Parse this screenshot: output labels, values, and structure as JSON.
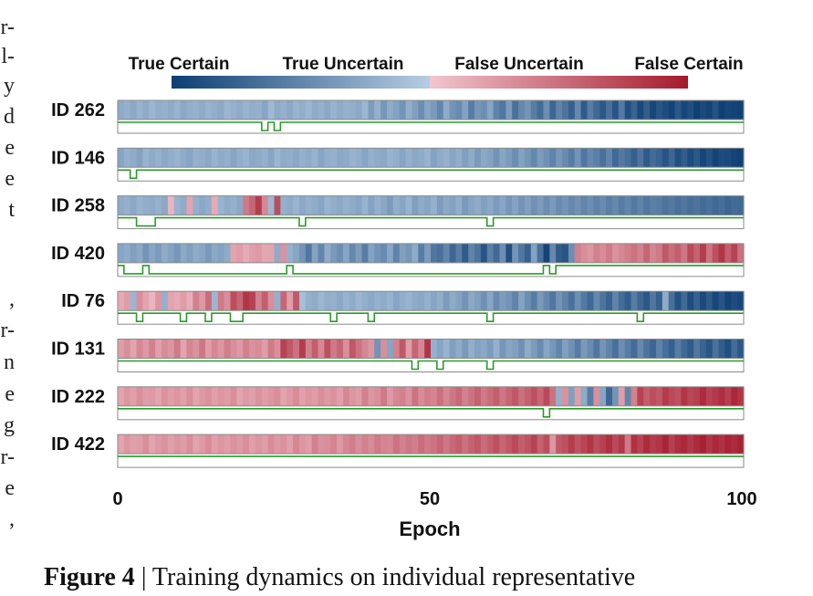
{
  "left_column_fragments": [
    "r-",
    "l-",
    "y",
    "d",
    "e",
    "e",
    "t",
    "",
    ",",
    "r-",
    "n",
    "e",
    "g",
    "r-",
    "e",
    ","
  ],
  "colorbar": {
    "labels": [
      "True Certain",
      "True Uncertain",
      "False Uncertain",
      "False Certain"
    ],
    "colors": [
      "#0d3e73",
      "#b7cde3",
      "#f1c6cf",
      "#a41a2c"
    ]
  },
  "chart_data": {
    "type": "heatmap",
    "xlabel": "Epoch",
    "xlim": [
      0,
      100
    ],
    "xticks": [
      0,
      50,
      100
    ],
    "rows": [
      {
        "id": "ID 262",
        "colors": [
          0.38,
          0.4,
          0.37,
          0.41,
          0.38,
          0.42,
          0.39,
          0.4,
          0.38,
          0.41,
          0.37,
          0.39,
          0.4,
          0.38,
          0.41,
          0.39,
          0.37,
          0.42,
          0.4,
          0.38,
          0.41,
          0.39,
          0.4,
          0.36,
          0.43,
          0.38,
          0.4,
          0.37,
          0.41,
          0.39,
          0.42,
          0.38,
          0.4,
          0.37,
          0.41,
          0.38,
          0.4,
          0.39,
          0.37,
          0.42,
          0.33,
          0.4,
          0.31,
          0.38,
          0.35,
          0.3,
          0.39,
          0.34,
          0.28,
          0.36,
          0.32,
          0.25,
          0.38,
          0.3,
          0.27,
          0.35,
          0.22,
          0.31,
          0.28,
          0.36,
          0.24,
          0.2,
          0.33,
          0.18,
          0.26,
          0.3,
          0.22,
          0.16,
          0.28,
          0.14,
          0.24,
          0.19,
          0.12,
          0.26,
          0.1,
          0.22,
          0.15,
          0.09,
          0.18,
          0.08,
          0.21,
          0.06,
          0.13,
          0.04,
          0.11,
          0.03,
          0.08,
          0.05,
          0.02,
          0.09,
          0.03,
          0.06,
          0.01,
          0.04,
          0.02,
          0.07,
          0.01,
          0.03,
          0.02,
          0.01
        ],
        "changes": [
          23,
          24,
          25,
          26
        ]
      },
      {
        "id": "ID 146",
        "colors": [
          0.36,
          0.4,
          0.38,
          0.35,
          0.41,
          0.38,
          0.4,
          0.37,
          0.39,
          0.41,
          0.38,
          0.36,
          0.4,
          0.39,
          0.37,
          0.41,
          0.38,
          0.4,
          0.36,
          0.39,
          0.41,
          0.37,
          0.38,
          0.4,
          0.36,
          0.42,
          0.38,
          0.39,
          0.37,
          0.4,
          0.38,
          0.41,
          0.36,
          0.39,
          0.4,
          0.37,
          0.38,
          0.41,
          0.39,
          0.36,
          0.4,
          0.38,
          0.37,
          0.41,
          0.39,
          0.36,
          0.4,
          0.37,
          0.38,
          0.41,
          0.35,
          0.38,
          0.4,
          0.36,
          0.39,
          0.34,
          0.38,
          0.32,
          0.37,
          0.35,
          0.3,
          0.36,
          0.33,
          0.28,
          0.35,
          0.31,
          0.26,
          0.33,
          0.29,
          0.24,
          0.31,
          0.27,
          0.22,
          0.3,
          0.2,
          0.26,
          0.23,
          0.18,
          0.25,
          0.15,
          0.21,
          0.17,
          0.12,
          0.19,
          0.1,
          0.16,
          0.13,
          0.08,
          0.14,
          0.06,
          0.11,
          0.05,
          0.09,
          0.03,
          0.07,
          0.02,
          0.05,
          0.04,
          0.02,
          0.01
        ],
        "changes": [
          2,
          3
        ]
      },
      {
        "id": "ID 258",
        "colors": [
          0.38,
          0.4,
          0.37,
          0.41,
          0.39,
          0.38,
          0.4,
          0.37,
          0.55,
          0.41,
          0.38,
          0.6,
          0.4,
          0.37,
          0.39,
          0.58,
          0.41,
          0.38,
          0.4,
          0.37,
          0.72,
          0.78,
          0.9,
          0.68,
          0.42,
          0.85,
          0.4,
          0.38,
          0.41,
          0.37,
          0.4,
          0.38,
          0.36,
          0.41,
          0.39,
          0.37,
          0.4,
          0.38,
          0.36,
          0.41,
          0.35,
          0.4,
          0.37,
          0.33,
          0.39,
          0.36,
          0.41,
          0.34,
          0.38,
          0.36,
          0.4,
          0.33,
          0.37,
          0.35,
          0.39,
          0.32,
          0.36,
          0.38,
          0.34,
          0.37,
          0.33,
          0.36,
          0.31,
          0.35,
          0.3,
          0.34,
          0.29,
          0.33,
          0.28,
          0.32,
          0.27,
          0.3,
          0.26,
          0.29,
          0.25,
          0.28,
          0.24,
          0.27,
          0.23,
          0.26,
          0.22,
          0.25,
          0.21,
          0.24,
          0.2,
          0.23,
          0.22,
          0.19,
          0.21,
          0.18,
          0.2,
          0.17,
          0.19,
          0.16,
          0.18,
          0.15,
          0.17,
          0.14,
          0.16,
          0.15
        ],
        "changes": [
          3,
          6,
          29,
          30,
          59,
          60
        ]
      },
      {
        "id": "ID 420",
        "colors": [
          0.36,
          0.38,
          0.34,
          0.37,
          0.3,
          0.36,
          0.33,
          0.38,
          0.35,
          0.31,
          0.37,
          0.34,
          0.38,
          0.36,
          0.32,
          0.37,
          0.35,
          0.38,
          0.6,
          0.62,
          0.58,
          0.61,
          0.63,
          0.59,
          0.6,
          0.38,
          0.65,
          0.4,
          0.36,
          0.3,
          0.2,
          0.35,
          0.25,
          0.38,
          0.32,
          0.28,
          0.36,
          0.26,
          0.33,
          0.22,
          0.35,
          0.3,
          0.27,
          0.36,
          0.24,
          0.34,
          0.31,
          0.38,
          0.22,
          0.33,
          0.2,
          0.18,
          0.25,
          0.14,
          0.22,
          0.1,
          0.24,
          0.19,
          0.08,
          0.23,
          0.15,
          0.28,
          0.06,
          0.3,
          0.2,
          0.12,
          0.35,
          0.18,
          0.02,
          0.26,
          0.1,
          0.08,
          0.28,
          0.7,
          0.66,
          0.64,
          0.7,
          0.67,
          0.72,
          0.65,
          0.68,
          0.71,
          0.74,
          0.7,
          0.78,
          0.69,
          0.72,
          0.82,
          0.76,
          0.8,
          0.73,
          0.86,
          0.79,
          0.9,
          0.74,
          0.84,
          0.92,
          0.8,
          0.88,
          0.75
        ],
        "changes": [
          1,
          4,
          5,
          27,
          28,
          68,
          69,
          70
        ]
      },
      {
        "id": "ID 76",
        "colors": [
          0.58,
          0.62,
          0.42,
          0.66,
          0.6,
          0.55,
          0.64,
          0.4,
          0.6,
          0.58,
          0.62,
          0.57,
          0.7,
          0.63,
          0.76,
          0.42,
          0.72,
          0.66,
          0.85,
          0.78,
          0.92,
          0.88,
          0.7,
          0.8,
          0.66,
          0.4,
          0.78,
          0.62,
          0.82,
          0.45,
          0.4,
          0.38,
          0.42,
          0.39,
          0.4,
          0.37,
          0.41,
          0.38,
          0.42,
          0.39,
          0.37,
          0.4,
          0.38,
          0.41,
          0.36,
          0.39,
          0.41,
          0.38,
          0.37,
          0.4,
          0.36,
          0.39,
          0.33,
          0.38,
          0.35,
          0.3,
          0.37,
          0.34,
          0.29,
          0.36,
          0.27,
          0.33,
          0.3,
          0.24,
          0.35,
          0.28,
          0.22,
          0.32,
          0.26,
          0.2,
          0.3,
          0.24,
          0.18,
          0.28,
          0.21,
          0.15,
          0.26,
          0.19,
          0.13,
          0.24,
          0.16,
          0.11,
          0.22,
          0.14,
          0.09,
          0.2,
          0.12,
          0.38,
          0.17,
          0.07,
          0.15,
          0.05,
          0.12,
          0.04,
          0.1,
          0.03,
          0.08,
          0.02,
          0.05,
          0.03
        ],
        "changes": [
          3,
          4,
          10,
          11,
          14,
          15,
          18,
          20,
          34,
          35,
          40,
          41,
          59,
          60,
          83,
          84
        ]
      },
      {
        "id": "ID 131",
        "colors": [
          0.62,
          0.66,
          0.6,
          0.68,
          0.63,
          0.7,
          0.61,
          0.67,
          0.64,
          0.72,
          0.6,
          0.69,
          0.65,
          0.73,
          0.62,
          0.68,
          0.64,
          0.71,
          0.66,
          0.63,
          0.7,
          0.65,
          0.67,
          0.62,
          0.72,
          0.66,
          0.88,
          0.82,
          0.75,
          0.9,
          0.7,
          0.8,
          0.68,
          0.84,
          0.72,
          0.78,
          0.66,
          0.82,
          0.74,
          0.68,
          0.64,
          0.3,
          0.66,
          0.36,
          0.7,
          0.82,
          0.62,
          0.78,
          0.68,
          0.92,
          0.4,
          0.36,
          0.41,
          0.34,
          0.38,
          0.32,
          0.39,
          0.35,
          0.37,
          0.33,
          0.4,
          0.31,
          0.36,
          0.34,
          0.29,
          0.38,
          0.33,
          0.27,
          0.36,
          0.31,
          0.25,
          0.34,
          0.29,
          0.22,
          0.32,
          0.27,
          0.2,
          0.3,
          0.24,
          0.18,
          0.28,
          0.22,
          0.16,
          0.26,
          0.19,
          0.14,
          0.24,
          0.17,
          0.12,
          0.22,
          0.15,
          0.1,
          0.2,
          0.13,
          0.08,
          0.18,
          0.11,
          0.06,
          0.16,
          0.09
        ],
        "changes": [
          47,
          48,
          51,
          52,
          59,
          60
        ]
      },
      {
        "id": "ID 222",
        "colors": [
          0.6,
          0.64,
          0.61,
          0.66,
          0.62,
          0.63,
          0.6,
          0.65,
          0.62,
          0.64,
          0.61,
          0.66,
          0.6,
          0.63,
          0.65,
          0.61,
          0.64,
          0.62,
          0.66,
          0.6,
          0.63,
          0.61,
          0.65,
          0.62,
          0.64,
          0.66,
          0.6,
          0.63,
          0.67,
          0.61,
          0.64,
          0.62,
          0.66,
          0.63,
          0.65,
          0.61,
          0.68,
          0.64,
          0.62,
          0.7,
          0.64,
          0.66,
          0.72,
          0.63,
          0.68,
          0.7,
          0.65,
          0.74,
          0.67,
          0.71,
          0.69,
          0.75,
          0.68,
          0.73,
          0.77,
          0.7,
          0.74,
          0.79,
          0.72,
          0.76,
          0.8,
          0.73,
          0.78,
          0.82,
          0.75,
          0.79,
          0.84,
          0.78,
          0.86,
          0.74,
          0.4,
          0.65,
          0.34,
          0.62,
          0.38,
          0.22,
          0.66,
          0.36,
          0.14,
          0.3,
          0.62,
          0.25,
          0.7,
          0.88,
          0.8,
          0.85,
          0.82,
          0.9,
          0.86,
          0.84,
          0.92,
          0.87,
          0.89,
          0.95,
          0.88,
          0.91,
          0.94,
          0.89,
          0.96,
          0.92
        ],
        "changes": [
          68,
          69
        ]
      },
      {
        "id": "ID 422",
        "colors": [
          0.6,
          0.64,
          0.61,
          0.62,
          0.66,
          0.6,
          0.63,
          0.65,
          0.61,
          0.64,
          0.62,
          0.66,
          0.6,
          0.63,
          0.67,
          0.61,
          0.64,
          0.62,
          0.65,
          0.63,
          0.66,
          0.61,
          0.64,
          0.62,
          0.67,
          0.63,
          0.65,
          0.61,
          0.68,
          0.64,
          0.62,
          0.7,
          0.65,
          0.66,
          0.69,
          0.63,
          0.68,
          0.71,
          0.66,
          0.7,
          0.67,
          0.72,
          0.69,
          0.68,
          0.74,
          0.7,
          0.73,
          0.71,
          0.76,
          0.72,
          0.74,
          0.78,
          0.73,
          0.77,
          0.8,
          0.75,
          0.79,
          0.82,
          0.76,
          0.8,
          0.84,
          0.78,
          0.82,
          0.86,
          0.8,
          0.83,
          0.88,
          0.79,
          0.85,
          0.64,
          0.82,
          0.84,
          0.9,
          0.83,
          0.87,
          0.92,
          0.85,
          0.89,
          0.94,
          0.86,
          0.91,
          0.72,
          0.93,
          0.88,
          0.95,
          0.9,
          0.92,
          0.97,
          0.89,
          0.94,
          0.96,
          0.91,
          0.95,
          0.98,
          0.92,
          0.96,
          0.93,
          0.97,
          0.95,
          0.98
        ],
        "changes": []
      }
    ]
  },
  "caption": {
    "label": "Figure 4",
    "separator": " | ",
    "text": "Training dynamics on individual representative"
  }
}
